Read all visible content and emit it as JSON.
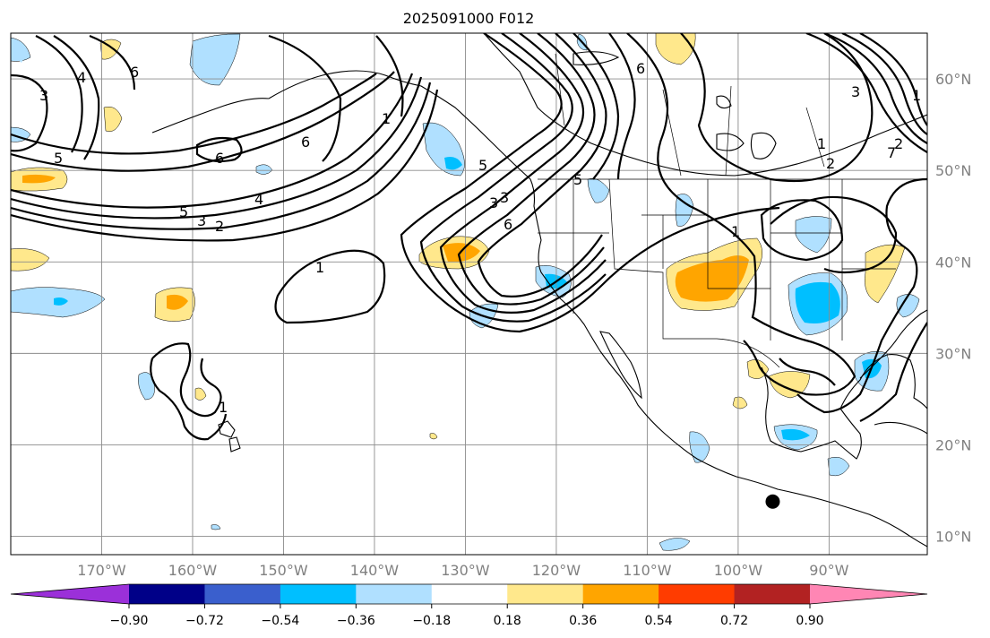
{
  "title": "2025091000 F012",
  "lat_labels": [
    "60°N",
    "50°N",
    "40°N",
    "30°N",
    "20°N",
    "10°N"
  ],
  "lat_values": [
    60,
    50,
    40,
    30,
    20,
    10
  ],
  "lon_labels": [
    "170°W",
    "160°W",
    "150°W",
    "140°W",
    "130°W",
    "120°W",
    "110°W",
    "100°W",
    "90°W"
  ],
  "lon_values": [
    -170,
    -160,
    -150,
    -140,
    -130,
    -120,
    -110,
    -100,
    -90
  ],
  "colorbar": {
    "labels": [
      "−0.90",
      "−0.72",
      "−0.54",
      "−0.36",
      "−0.18",
      "0.18",
      "0.36",
      "0.54",
      "0.72",
      "0.90"
    ],
    "levels": [
      -0.9,
      -0.72,
      -0.54,
      -0.36,
      -0.18,
      0.18,
      0.36,
      0.54,
      0.72,
      0.9
    ],
    "colors": [
      "#9b30d9",
      "#000088",
      "#3a5fcd",
      "#00bfff",
      "#b0e0ff",
      "#ffffff",
      "#ffe88c",
      "#ffa500",
      "#ff3c00",
      "#b22222",
      "#ff86b4"
    ]
  },
  "contour_labels": [
    "3",
    "4",
    "5",
    "6",
    "6",
    "5",
    "4",
    "3",
    "2",
    "6",
    "1",
    "1",
    "1",
    "6",
    "5",
    "3",
    "3",
    "6",
    "5",
    "1",
    "1",
    "2",
    "2",
    "7",
    "3",
    "1"
  ],
  "marker": {
    "name": "black dot",
    "lon": -96.2,
    "lat": 13.8
  }
}
